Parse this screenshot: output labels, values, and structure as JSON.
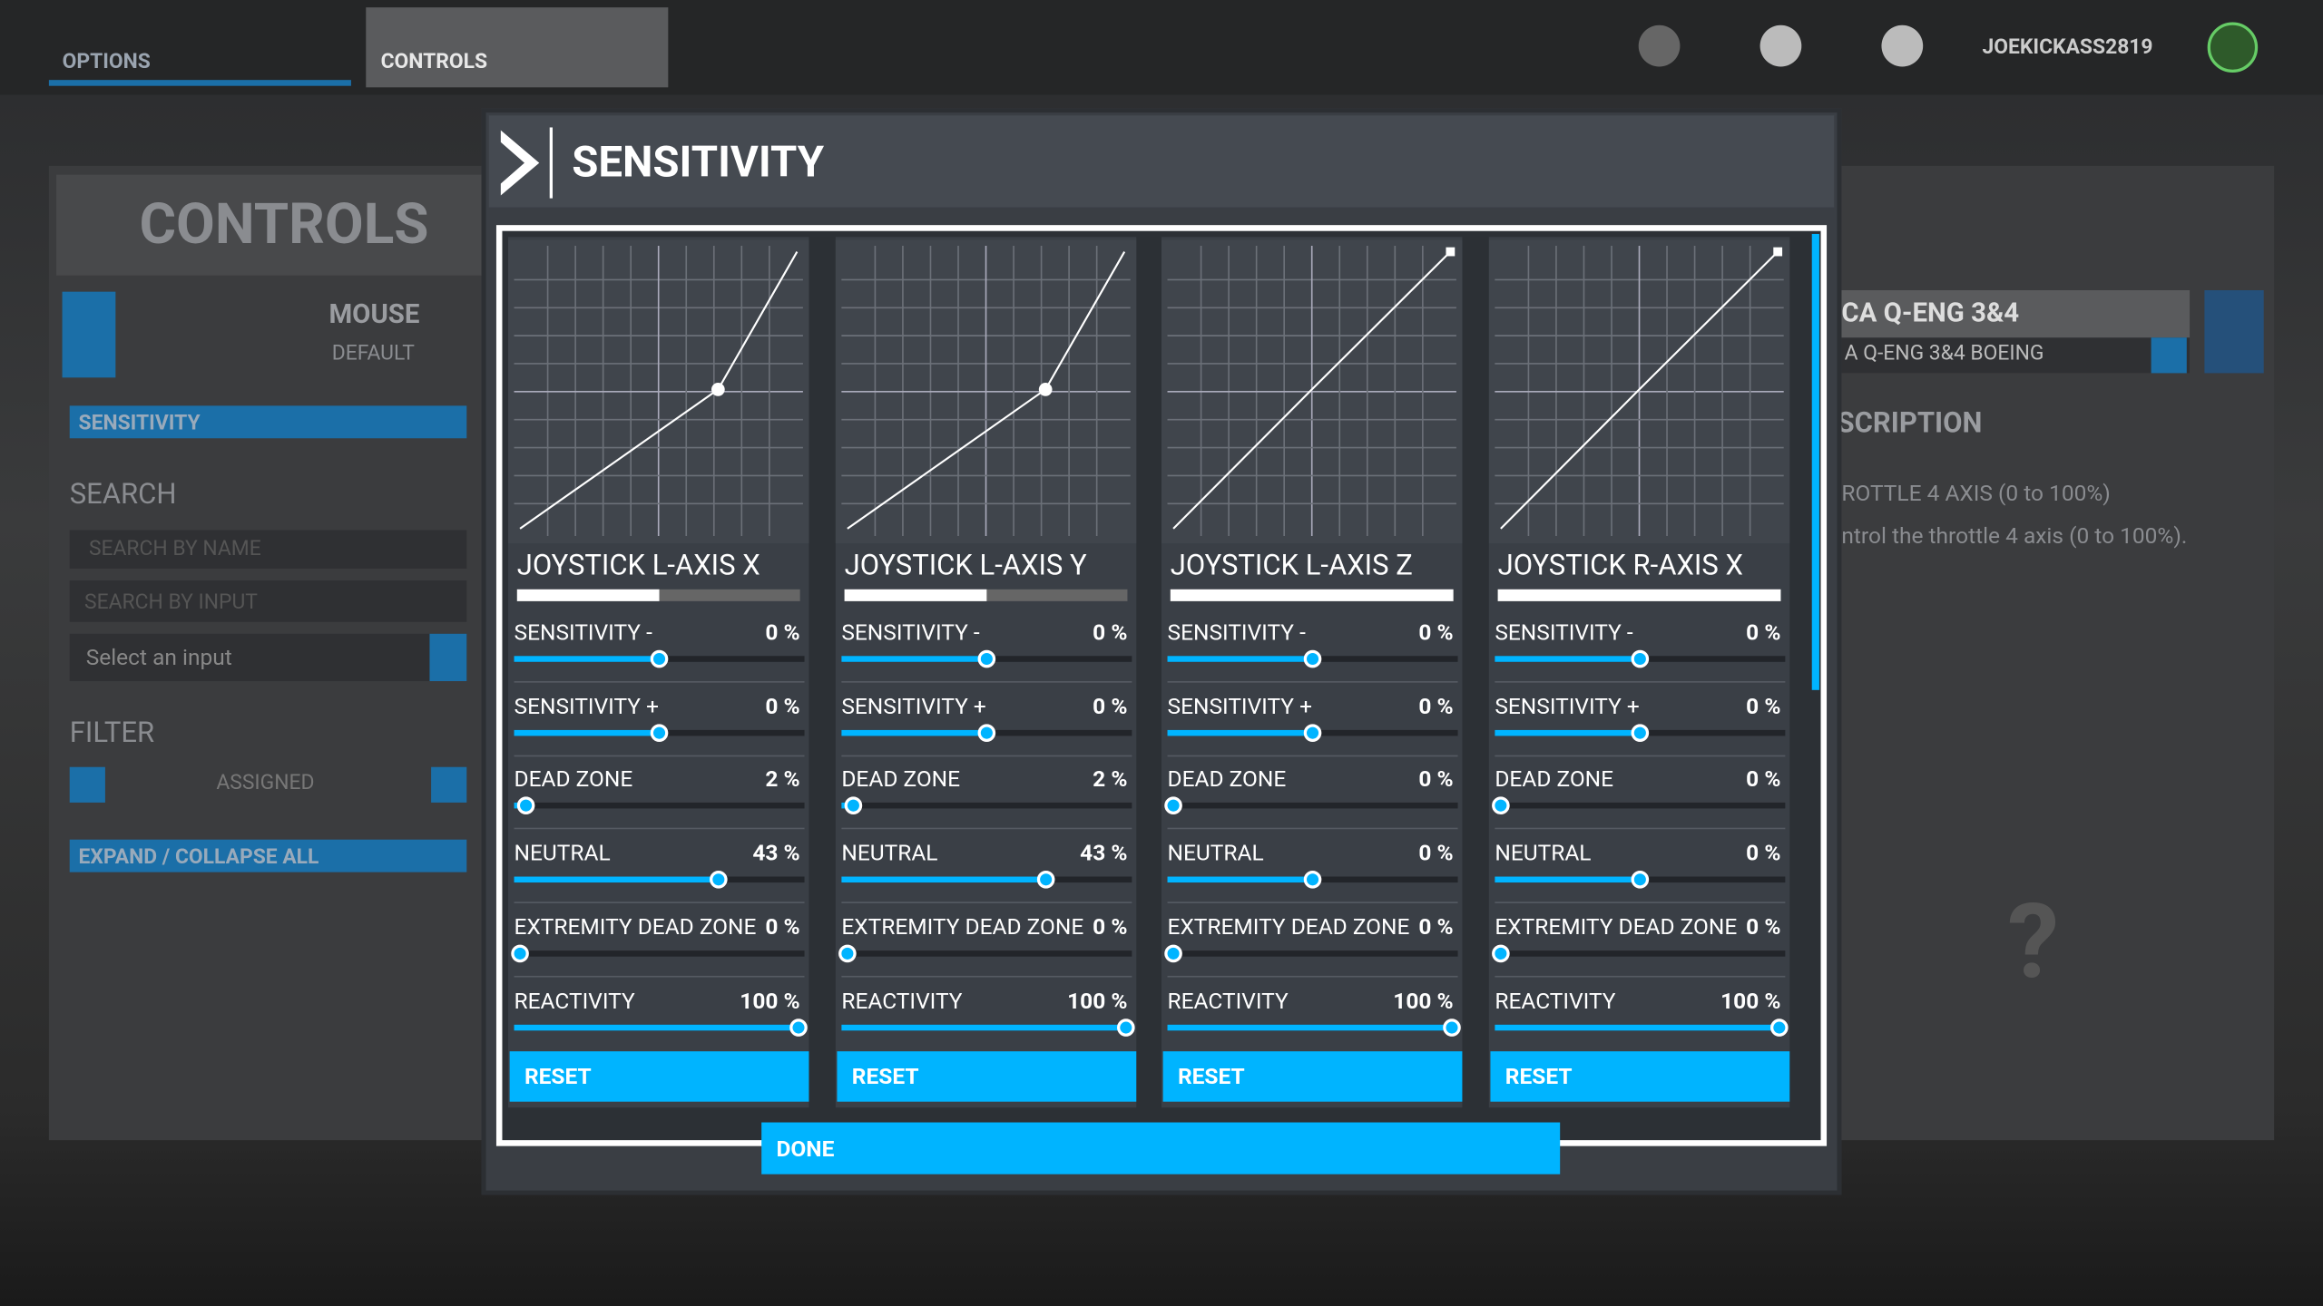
{
  "top_bar": {
    "tabs": [
      "OPTIONS",
      "CONTROLS"
    ],
    "username": "JOEKICKASS2819"
  },
  "left_panel": {
    "title": "CONTROLS",
    "device": "MOUSE",
    "profile": "DEFAULT",
    "selected": "SENSITIVITY",
    "search_title": "SEARCH",
    "search_name_placeholder": "SEARCH BY NAME",
    "search_input_placeholder": "SEARCH BY INPUT",
    "select_input": "Select an input",
    "filter_title": "FILTER",
    "filter_value": "ASSIGNED",
    "expand_all": "EXPAND / COLLAPSE ALL"
  },
  "right_panel": {
    "device": "CA Q-ENG 3&4",
    "profile": "A Q-ENG 3&4 BOEING",
    "description_title": "SCRIPTION",
    "axis_name": "ROTTLE 4 AXIS (0 to 100%)",
    "axis_description": "ntrol the throttle 4 axis (0 to 100%).",
    "help_icon": "?"
  },
  "dialog": {
    "title": "SENSITIVITY",
    "reset_label": "RESET",
    "done_label": "DONE",
    "panels": [
      {
        "name": "JOYSTICK L-AXIS X",
        "settings": [
          {
            "label": "SENSITIVITY -",
            "value": 0,
            "value_label": "0 %",
            "range": [
              -100,
              100
            ]
          },
          {
            "label": "SENSITIVITY +",
            "value": 0,
            "value_label": "0 %",
            "range": [
              -100,
              100
            ]
          },
          {
            "label": "DEAD ZONE",
            "value": 2,
            "value_label": "2 %",
            "range": [
              0,
              100
            ]
          },
          {
            "label": "NEUTRAL",
            "value": 43,
            "value_label": "43 %",
            "range": [
              -100,
              100
            ]
          },
          {
            "label": "EXTREMITY DEAD ZONE",
            "value": 0,
            "value_label": "0 %",
            "range": [
              0,
              100
            ]
          },
          {
            "label": "REACTIVITY",
            "value": 100,
            "value_label": "100 %",
            "range": [
              0,
              100
            ]
          }
        ]
      },
      {
        "name": "JOYSTICK L-AXIS Y",
        "settings": [
          {
            "label": "SENSITIVITY -",
            "value": 0,
            "value_label": "0 %",
            "range": [
              -100,
              100
            ]
          },
          {
            "label": "SENSITIVITY +",
            "value": 0,
            "value_label": "0 %",
            "range": [
              -100,
              100
            ]
          },
          {
            "label": "DEAD ZONE",
            "value": 2,
            "value_label": "2 %",
            "range": [
              0,
              100
            ]
          },
          {
            "label": "NEUTRAL",
            "value": 43,
            "value_label": "43 %",
            "range": [
              -100,
              100
            ]
          },
          {
            "label": "EXTREMITY DEAD ZONE",
            "value": 0,
            "value_label": "0 %",
            "range": [
              0,
              100
            ]
          },
          {
            "label": "REACTIVITY",
            "value": 100,
            "value_label": "100 %",
            "range": [
              0,
              100
            ]
          }
        ]
      },
      {
        "name": "JOYSTICK L-AXIS Z",
        "settings": [
          {
            "label": "SENSITIVITY -",
            "value": 0,
            "value_label": "0 %",
            "range": [
              -100,
              100
            ]
          },
          {
            "label": "SENSITIVITY +",
            "value": 0,
            "value_label": "0 %",
            "range": [
              -100,
              100
            ]
          },
          {
            "label": "DEAD ZONE",
            "value": 0,
            "value_label": "0 %",
            "range": [
              0,
              100
            ]
          },
          {
            "label": "NEUTRAL",
            "value": 0,
            "value_label": "0 %",
            "range": [
              -100,
              100
            ]
          },
          {
            "label": "EXTREMITY DEAD ZONE",
            "value": 0,
            "value_label": "0 %",
            "range": [
              0,
              100
            ]
          },
          {
            "label": "REACTIVITY",
            "value": 100,
            "value_label": "100 %",
            "range": [
              0,
              100
            ]
          }
        ]
      },
      {
        "name": "JOYSTICK R-AXIS X",
        "settings": [
          {
            "label": "SENSITIVITY -",
            "value": 0,
            "value_label": "0 %",
            "range": [
              -100,
              100
            ]
          },
          {
            "label": "SENSITIVITY +",
            "value": 0,
            "value_label": "0 %",
            "range": [
              -100,
              100
            ]
          },
          {
            "label": "DEAD ZONE",
            "value": 0,
            "value_label": "0 %",
            "range": [
              0,
              100
            ]
          },
          {
            "label": "NEUTRAL",
            "value": 0,
            "value_label": "0 %",
            "range": [
              -100,
              100
            ]
          },
          {
            "label": "EXTREMITY DEAD ZONE",
            "value": 0,
            "value_label": "0 %",
            "range": [
              0,
              100
            ]
          },
          {
            "label": "REACTIVITY",
            "value": 100,
            "value_label": "100 %",
            "range": [
              0,
              100
            ]
          }
        ]
      }
    ]
  }
}
